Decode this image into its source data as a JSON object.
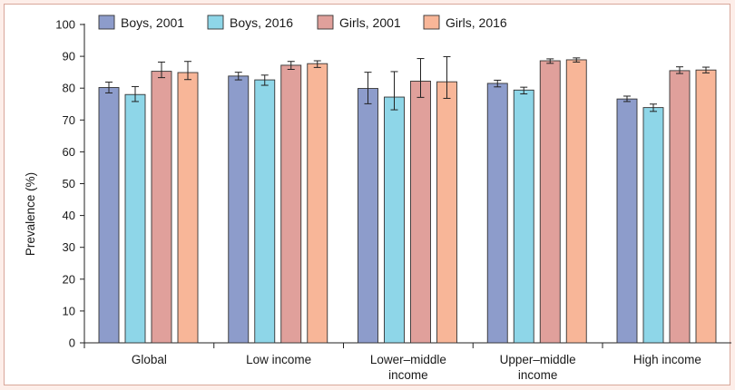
{
  "chart_data": {
    "type": "bar",
    "title": "",
    "xlabel": "",
    "ylabel": "Prevalence (%)",
    "ylim": [
      0,
      100
    ],
    "yticks": [
      0,
      10,
      20,
      30,
      40,
      50,
      60,
      70,
      80,
      90,
      100
    ],
    "grid": false,
    "legend_position": "top-left",
    "categories": [
      [
        "Global"
      ],
      [
        "Low income"
      ],
      [
        "Lower–middle",
        "income"
      ],
      [
        "Upper–middle",
        "income"
      ],
      [
        "High income"
      ]
    ],
    "series": [
      {
        "name": "Boys, 2001",
        "color": "#8d9ccb",
        "values": [
          80.2,
          83.8,
          79.9,
          81.5,
          76.6
        ],
        "error_low": [
          78.5,
          82.6,
          75.1,
          80.4,
          75.8
        ],
        "error_high": [
          81.9,
          85.0,
          85.0,
          82.5,
          77.5
        ]
      },
      {
        "name": "Boys, 2016",
        "color": "#8ed6e8",
        "values": [
          78.0,
          82.6,
          77.2,
          79.4,
          73.9
        ],
        "error_low": [
          75.8,
          80.9,
          73.2,
          78.2,
          72.7
        ],
        "error_high": [
          80.5,
          84.1,
          85.2,
          80.3,
          75.0
        ]
      },
      {
        "name": "Girls, 2001",
        "color": "#e0a09b",
        "values": [
          85.3,
          87.2,
          82.2,
          88.6,
          85.5
        ],
        "error_low": [
          83.3,
          85.9,
          77.1,
          87.8,
          84.6
        ],
        "error_high": [
          88.2,
          88.4,
          89.3,
          89.2,
          86.7
        ]
      },
      {
        "name": "Girls, 2016",
        "color": "#f8b698",
        "values": [
          84.9,
          87.7,
          82.0,
          88.9,
          85.7
        ],
        "error_low": [
          82.7,
          86.5,
          76.8,
          88.2,
          84.8
        ],
        "error_high": [
          88.4,
          88.6,
          89.9,
          89.5,
          86.6
        ]
      }
    ]
  }
}
